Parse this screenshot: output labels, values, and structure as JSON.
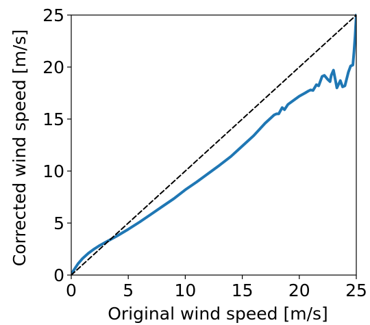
{
  "chart_data": {
    "type": "line",
    "title": "",
    "xlabel": "Original wind speed [m/s]",
    "ylabel": "Corrected wind speed [m/s]",
    "xlim": [
      0,
      25
    ],
    "ylim": [
      0,
      25
    ],
    "xticks": [
      0,
      5,
      10,
      15,
      20,
      25
    ],
    "yticks": [
      0,
      5,
      10,
      15,
      20,
      25
    ],
    "xtick_labels": [
      "0",
      "5",
      "10",
      "15",
      "20",
      "25"
    ],
    "ytick_labels": [
      "0",
      "5",
      "10",
      "15",
      "20",
      "25"
    ],
    "grid": false,
    "series": [
      {
        "style": "solid",
        "color": "#1f77b4",
        "x": [
          0,
          0.3,
          0.6,
          1.0,
          1.5,
          2.0,
          2.5,
          3.0,
          4.0,
          5.0,
          6.0,
          7.0,
          8.0,
          9.0,
          10.0,
          11.0,
          12.0,
          13.0,
          14.0,
          15.0,
          16.0,
          16.5,
          17.0,
          17.5,
          17.8,
          18.0,
          18.2,
          18.5,
          18.7,
          19.0,
          19.5,
          20.0,
          20.5,
          20.8,
          21.0,
          21.2,
          21.5,
          21.7,
          22.0,
          22.2,
          22.5,
          22.7,
          22.8,
          23.0,
          23.3,
          23.6,
          23.8,
          24.0,
          24.3,
          24.5,
          24.7,
          24.8,
          24.9,
          25.0
        ],
        "y": [
          0.1,
          0.6,
          1.1,
          1.6,
          2.1,
          2.5,
          2.85,
          3.15,
          3.75,
          4.4,
          5.1,
          5.85,
          6.6,
          7.35,
          8.2,
          8.95,
          9.75,
          10.55,
          11.4,
          12.4,
          13.4,
          14.0,
          14.6,
          15.1,
          15.4,
          15.5,
          15.5,
          16.1,
          15.9,
          16.4,
          16.8,
          17.2,
          17.5,
          17.7,
          17.8,
          17.75,
          18.3,
          18.2,
          19.1,
          19.2,
          18.8,
          18.6,
          19.2,
          19.7,
          18.0,
          18.7,
          18.1,
          18.2,
          19.5,
          20.1,
          20.2,
          21.5,
          23.0,
          25.0
        ]
      },
      {
        "style": "dashed",
        "color": "#000000",
        "x": [
          0,
          25
        ],
        "y": [
          0,
          25
        ]
      }
    ]
  }
}
